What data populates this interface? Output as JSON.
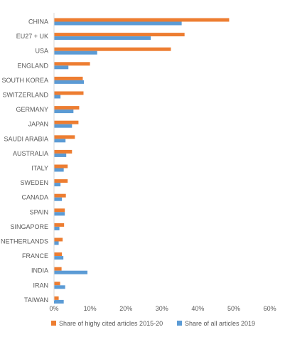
{
  "chart_data": {
    "type": "bar",
    "orientation": "horizontal",
    "categories": [
      "CHINA",
      "EU27 + UK",
      "USA",
      "ENGLAND",
      "SOUTH KOREA",
      "SWITZERLAND",
      "GERMANY",
      "JAPAN",
      "SAUDI ARABIA",
      "AUSTRALIA",
      "ITALY",
      "SWEDEN",
      "CANADA",
      "SPAIN",
      "SINGAPORE",
      "NETHERLANDS",
      "FRANCE",
      "INDIA",
      "IRAN",
      "TAIWAN"
    ],
    "series": [
      {
        "name": "Share of highy cited articles 2015-20",
        "color": "#ED7D31",
        "values": [
          48.7,
          36.3,
          32.5,
          10.0,
          8.0,
          8.2,
          7.0,
          6.8,
          5.8,
          5.0,
          3.8,
          3.8,
          3.3,
          3.0,
          2.8,
          2.4,
          2.2,
          2.1,
          1.7,
          1.3
        ]
      },
      {
        "name": "Share of all articles 2019",
        "color": "#5B9BD5",
        "values": [
          35.5,
          26.9,
          12.0,
          4.0,
          8.3,
          1.8,
          5.4,
          5.0,
          3.2,
          3.4,
          2.7,
          1.8,
          2.2,
          3.0,
          1.5,
          1.3,
          2.6,
          9.3,
          3.1,
          2.7
        ]
      }
    ],
    "x_ticks": [
      "0%",
      "10%",
      "20%",
      "30%",
      "40%",
      "50%",
      "60%"
    ],
    "xlim": [
      0,
      60
    ],
    "grid": false,
    "legend_position": "bottom"
  }
}
